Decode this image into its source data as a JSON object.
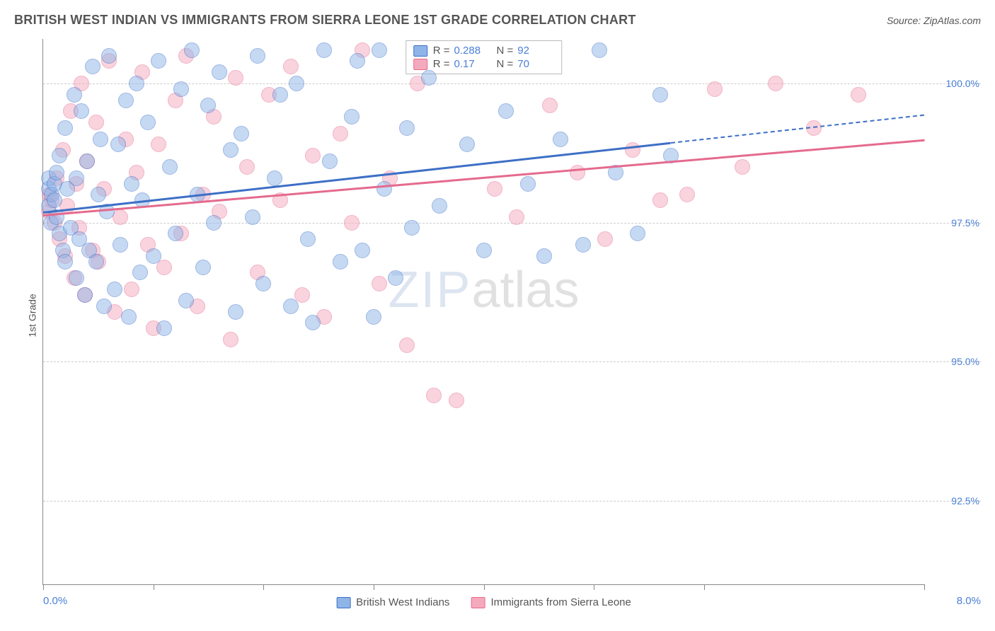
{
  "header": {
    "title": "BRITISH WEST INDIAN VS IMMIGRANTS FROM SIERRA LEONE 1ST GRADE CORRELATION CHART",
    "source": "Source: ZipAtlas.com"
  },
  "chart": {
    "type": "scatter",
    "ylabel": "1st Grade",
    "xlim": [
      0.0,
      8.0
    ],
    "ylim": [
      91.0,
      100.8
    ],
    "xticks": [
      0.0,
      1.0,
      2.0,
      3.0,
      4.0,
      5.0,
      6.0,
      8.0
    ],
    "xtick_labels": {
      "0": "0.0%",
      "8": "8.0%"
    },
    "yticks": [
      92.5,
      95.0,
      97.5,
      100.0
    ],
    "ytick_labels": [
      "92.5%",
      "95.0%",
      "97.5%",
      "100.0%"
    ],
    "grid_color": "#cccccc",
    "axis_color": "#888888",
    "background_color": "#ffffff",
    "tick_label_color": "#4a7fd6",
    "marker_radius": 11,
    "marker_opacity": 0.5,
    "series": [
      {
        "name": "British West Indians",
        "fill_color": "#8fb4e8",
        "stroke_color": "#3d6fc6",
        "r": 0.288,
        "n": 92,
        "trend": {
          "x0": 0.0,
          "y0": 97.7,
          "x1": 5.7,
          "y1": 98.95,
          "x2": 8.0,
          "y2": 99.45
        },
        "points": [
          [
            0.05,
            97.8
          ],
          [
            0.05,
            98.1
          ],
          [
            0.05,
            98.3
          ],
          [
            0.07,
            97.5
          ],
          [
            0.08,
            98.0
          ],
          [
            0.1,
            97.9
          ],
          [
            0.1,
            98.2
          ],
          [
            0.12,
            97.6
          ],
          [
            0.12,
            98.4
          ],
          [
            0.15,
            97.3
          ],
          [
            0.15,
            98.7
          ],
          [
            0.18,
            97.0
          ],
          [
            0.2,
            99.2
          ],
          [
            0.2,
            96.8
          ],
          [
            0.22,
            98.1
          ],
          [
            0.25,
            97.4
          ],
          [
            0.28,
            99.8
          ],
          [
            0.3,
            96.5
          ],
          [
            0.3,
            98.3
          ],
          [
            0.33,
            97.2
          ],
          [
            0.35,
            99.5
          ],
          [
            0.38,
            96.2
          ],
          [
            0.4,
            98.6
          ],
          [
            0.42,
            97.0
          ],
          [
            0.45,
            100.3
          ],
          [
            0.48,
            96.8
          ],
          [
            0.5,
            98.0
          ],
          [
            0.52,
            99.0
          ],
          [
            0.55,
            96.0
          ],
          [
            0.58,
            97.7
          ],
          [
            0.6,
            100.5
          ],
          [
            0.65,
            96.3
          ],
          [
            0.68,
            98.9
          ],
          [
            0.7,
            97.1
          ],
          [
            0.75,
            99.7
          ],
          [
            0.78,
            95.8
          ],
          [
            0.8,
            98.2
          ],
          [
            0.85,
            100.0
          ],
          [
            0.88,
            96.6
          ],
          [
            0.9,
            97.9
          ],
          [
            0.95,
            99.3
          ],
          [
            1.0,
            96.9
          ],
          [
            1.05,
            100.4
          ],
          [
            1.1,
            95.6
          ],
          [
            1.15,
            98.5
          ],
          [
            1.2,
            97.3
          ],
          [
            1.25,
            99.9
          ],
          [
            1.3,
            96.1
          ],
          [
            1.35,
            100.6
          ],
          [
            1.4,
            98.0
          ],
          [
            1.45,
            96.7
          ],
          [
            1.5,
            99.6
          ],
          [
            1.55,
            97.5
          ],
          [
            1.6,
            100.2
          ],
          [
            1.7,
            98.8
          ],
          [
            1.75,
            95.9
          ],
          [
            1.8,
            99.1
          ],
          [
            1.9,
            97.6
          ],
          [
            1.95,
            100.5
          ],
          [
            2.0,
            96.4
          ],
          [
            2.1,
            98.3
          ],
          [
            2.15,
            99.8
          ],
          [
            2.25,
            96.0
          ],
          [
            2.3,
            100.0
          ],
          [
            2.4,
            97.2
          ],
          [
            2.45,
            95.7
          ],
          [
            2.55,
            100.6
          ],
          [
            2.6,
            98.6
          ],
          [
            2.7,
            96.8
          ],
          [
            2.8,
            99.4
          ],
          [
            2.85,
            100.4
          ],
          [
            2.9,
            97.0
          ],
          [
            3.0,
            95.8
          ],
          [
            3.05,
            100.6
          ],
          [
            3.1,
            98.1
          ],
          [
            3.2,
            96.5
          ],
          [
            3.3,
            99.2
          ],
          [
            3.35,
            97.4
          ],
          [
            3.5,
            100.1
          ],
          [
            3.6,
            97.8
          ],
          [
            3.85,
            98.9
          ],
          [
            4.0,
            97.0
          ],
          [
            4.2,
            99.5
          ],
          [
            4.4,
            98.2
          ],
          [
            4.55,
            96.9
          ],
          [
            4.7,
            99.0
          ],
          [
            4.9,
            97.1
          ],
          [
            5.05,
            100.6
          ],
          [
            5.2,
            98.4
          ],
          [
            5.4,
            97.3
          ],
          [
            5.6,
            99.8
          ],
          [
            5.7,
            98.7
          ]
        ]
      },
      {
        "name": "Immigrants from Sierra Leone",
        "fill_color": "#f5a9bd",
        "stroke_color": "#e56a8e",
        "r": 0.17,
        "n": 70,
        "trend": {
          "x0": 0.0,
          "y0": 97.65,
          "x1": 8.0,
          "y1": 99.0
        },
        "points": [
          [
            0.05,
            97.7
          ],
          [
            0.06,
            98.0
          ],
          [
            0.08,
            97.9
          ],
          [
            0.1,
            97.5
          ],
          [
            0.12,
            98.3
          ],
          [
            0.15,
            97.2
          ],
          [
            0.18,
            98.8
          ],
          [
            0.2,
            96.9
          ],
          [
            0.22,
            97.8
          ],
          [
            0.25,
            99.5
          ],
          [
            0.28,
            96.5
          ],
          [
            0.3,
            98.2
          ],
          [
            0.33,
            97.4
          ],
          [
            0.35,
            100.0
          ],
          [
            0.38,
            96.2
          ],
          [
            0.4,
            98.6
          ],
          [
            0.45,
            97.0
          ],
          [
            0.48,
            99.3
          ],
          [
            0.5,
            96.8
          ],
          [
            0.55,
            98.1
          ],
          [
            0.6,
            100.4
          ],
          [
            0.65,
            95.9
          ],
          [
            0.7,
            97.6
          ],
          [
            0.75,
            99.0
          ],
          [
            0.8,
            96.3
          ],
          [
            0.85,
            98.4
          ],
          [
            0.9,
            100.2
          ],
          [
            0.95,
            97.1
          ],
          [
            1.0,
            95.6
          ],
          [
            1.05,
            98.9
          ],
          [
            1.1,
            96.7
          ],
          [
            1.2,
            99.7
          ],
          [
            1.25,
            97.3
          ],
          [
            1.3,
            100.5
          ],
          [
            1.4,
            96.0
          ],
          [
            1.45,
            98.0
          ],
          [
            1.55,
            99.4
          ],
          [
            1.6,
            97.7
          ],
          [
            1.7,
            95.4
          ],
          [
            1.75,
            100.1
          ],
          [
            1.85,
            98.5
          ],
          [
            1.95,
            96.6
          ],
          [
            2.05,
            99.8
          ],
          [
            2.15,
            97.9
          ],
          [
            2.25,
            100.3
          ],
          [
            2.35,
            96.2
          ],
          [
            2.45,
            98.7
          ],
          [
            2.55,
            95.8
          ],
          [
            2.7,
            99.1
          ],
          [
            2.8,
            97.5
          ],
          [
            2.9,
            100.6
          ],
          [
            3.05,
            96.4
          ],
          [
            3.15,
            98.3
          ],
          [
            3.3,
            95.3
          ],
          [
            3.4,
            100.0
          ],
          [
            3.55,
            94.4
          ],
          [
            3.75,
            94.3
          ],
          [
            4.1,
            98.1
          ],
          [
            4.3,
            97.6
          ],
          [
            4.6,
            99.6
          ],
          [
            4.85,
            98.4
          ],
          [
            5.1,
            97.2
          ],
          [
            5.35,
            98.8
          ],
          [
            5.6,
            97.9
          ],
          [
            5.85,
            98.0
          ],
          [
            6.1,
            99.9
          ],
          [
            6.35,
            98.5
          ],
          [
            6.65,
            100.0
          ],
          [
            7.0,
            99.2
          ],
          [
            7.4,
            99.8
          ]
        ]
      }
    ],
    "watermark": {
      "part1": "ZIP",
      "part2": "atlas"
    }
  },
  "legend_bottom": {
    "series1_label": "British West Indians",
    "series2_label": "Immigrants from Sierra Leone"
  }
}
